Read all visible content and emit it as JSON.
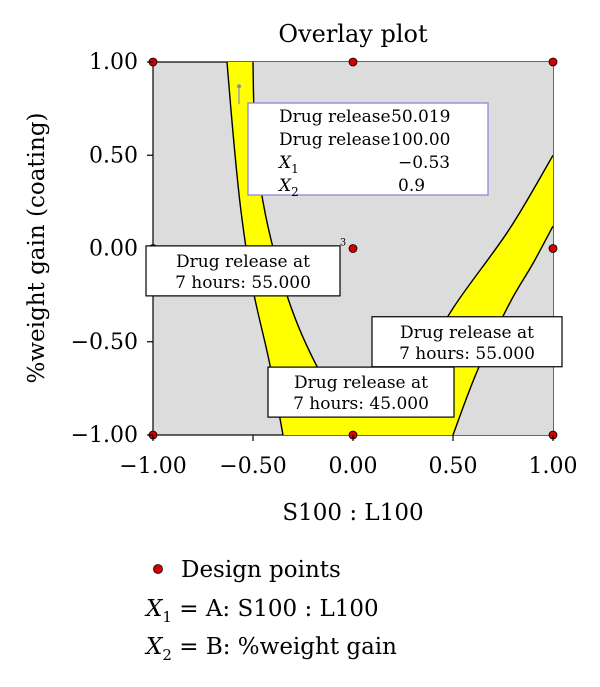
{
  "chart_data": {
    "type": "contour",
    "title": "Overlay plot",
    "xlabel": "S100 : L100",
    "ylabel": "%weight gain (coating)",
    "xlim": [
      -1.0,
      1.0
    ],
    "ylim": [
      -1.0,
      1.0
    ],
    "x_ticks": [
      "−1.00",
      "−0.50",
      "0.00",
      "0.50",
      "1.00"
    ],
    "y_ticks": [
      "1.00",
      "0.50",
      "0.00",
      "−0.50",
      "−1.00"
    ],
    "plot_background": "#dcdcdc",
    "feasible_region_color": "#ffff00",
    "grid": false,
    "design_points": [
      {
        "x": -1.0,
        "y": 1.0
      },
      {
        "x": 0.0,
        "y": 1.0
      },
      {
        "x": 1.0,
        "y": 1.0
      },
      {
        "x": -1.0,
        "y": 0.0
      },
      {
        "x": 0.0,
        "y": 0.0
      },
      {
        "x": 1.0,
        "y": 0.0
      },
      {
        "x": -1.0,
        "y": -1.0
      },
      {
        "x": 0.0,
        "y": -1.0
      },
      {
        "x": 1.0,
        "y": -1.0
      }
    ],
    "design_point_color": "#d40000",
    "center_point_label": "3",
    "contours": [
      {
        "label": "Drug release at 7 hours: 55.000",
        "points": [
          [
            -0.63,
            1.0
          ],
          [
            -0.6,
            0.62
          ],
          [
            -0.56,
            0.2
          ],
          [
            -0.5,
            -0.22
          ],
          [
            -0.42,
            -0.6
          ],
          [
            -0.35,
            -1.0
          ]
        ]
      },
      {
        "label": "Drug release at 7 hours: 45.000",
        "points": [
          [
            -0.5,
            1.0
          ],
          [
            -0.49,
            0.62
          ],
          [
            -0.45,
            0.25
          ],
          [
            -0.36,
            -0.15
          ],
          [
            -0.24,
            -0.5
          ],
          [
            -0.08,
            -0.8
          ],
          [
            0.1,
            -0.9
          ],
          [
            0.28,
            -0.72
          ],
          [
            0.5,
            -0.32
          ],
          [
            0.78,
            0.1
          ],
          [
            1.0,
            0.5
          ]
        ]
      },
      {
        "label": "Drug release at 7 hours: 55.000",
        "points": [
          [
            0.5,
            -1.0
          ],
          [
            0.62,
            -0.66
          ],
          [
            0.78,
            -0.3
          ],
          [
            0.9,
            -0.08
          ],
          [
            1.0,
            0.12
          ]
        ]
      }
    ],
    "labels": [
      {
        "text_line1": "Drug release at",
        "text_line2": "7 hours: 55.000",
        "x": -0.55,
        "y": -0.12
      },
      {
        "text_line1": "Drug release at",
        "text_line2": "7 hours: 55.000",
        "x": 0.57,
        "y": -0.5
      },
      {
        "text_line1": "Drug release at",
        "text_line2": "7 hours: 45.000",
        "x": 0.04,
        "y": -0.77
      }
    ],
    "flag_point": {
      "x": -0.57,
      "y": 0.87
    },
    "info_box": {
      "rows": [
        {
          "label": "Drug release",
          "value": "50.019"
        },
        {
          "label": "Drug release",
          "value": "100.00"
        },
        {
          "label_var": "X",
          "label_sub": "1",
          "value": "−0.53"
        },
        {
          "label_var": "X",
          "label_sub": "2",
          "value": "0.9"
        }
      ]
    },
    "legend": {
      "marker_label": "Design points",
      "definitions": [
        {
          "var": "X",
          "sub": "1",
          "text": " = A: S100 : L100"
        },
        {
          "var": "X",
          "sub": "2",
          "text": " = B: %weight gain"
        }
      ]
    }
  }
}
